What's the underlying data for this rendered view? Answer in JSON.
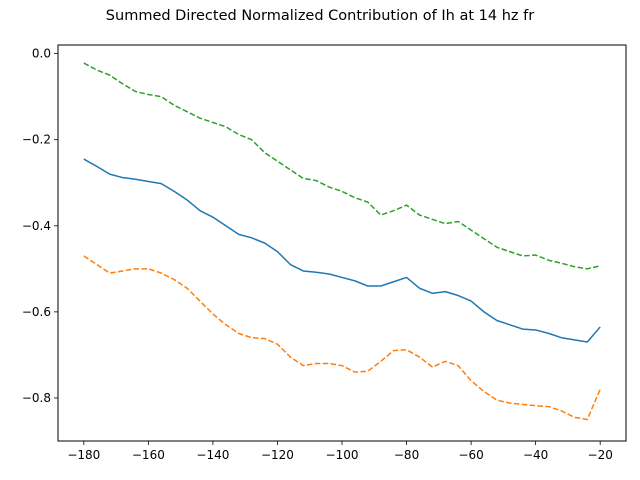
{
  "chart_data": {
    "type": "line",
    "title": "Summed Directed Normalized Contribution of Ih at 14 hz fr",
    "xlabel": "",
    "ylabel": "",
    "xlim": [
      -188,
      -12
    ],
    "ylim": [
      -0.9,
      0.02
    ],
    "xticks": [
      -180,
      -160,
      -140,
      -120,
      -100,
      -80,
      -60,
      -40,
      -20
    ],
    "yticks": [
      0.0,
      -0.2,
      -0.4,
      -0.6,
      -0.8
    ],
    "xtick_labels": [
      "−180",
      "−160",
      "−140",
      "−120",
      "−100",
      "−80",
      "−60",
      "−40",
      "−20"
    ],
    "ytick_labels": [
      "0.0",
      "−0.2",
      "−0.4",
      "−0.6",
      "−0.8"
    ],
    "grid": false,
    "x": [
      -180,
      -176,
      -172,
      -168,
      -164,
      -160,
      -156,
      -152,
      -148,
      -144,
      -140,
      -136,
      -132,
      -128,
      -124,
      -120,
      -116,
      -112,
      -108,
      -104,
      -100,
      -96,
      -92,
      -88,
      -84,
      -80,
      -76,
      -72,
      -68,
      -64,
      -60,
      -56,
      -52,
      -48,
      -44,
      -40,
      -36,
      -32,
      -28,
      -24,
      -20
    ],
    "series": [
      {
        "color": "#2ca02c",
        "style": "dashed",
        "values": [
          -0.022,
          -0.038,
          -0.05,
          -0.07,
          -0.088,
          -0.095,
          -0.1,
          -0.12,
          -0.135,
          -0.15,
          -0.16,
          -0.17,
          -0.188,
          -0.2,
          -0.23,
          -0.25,
          -0.27,
          -0.29,
          -0.295,
          -0.31,
          -0.32,
          -0.335,
          -0.345,
          -0.375,
          -0.365,
          -0.352,
          -0.375,
          -0.385,
          -0.395,
          -0.39,
          -0.41,
          -0.43,
          -0.45,
          -0.46,
          -0.47,
          -0.468,
          -0.48,
          -0.487,
          -0.495,
          -0.5,
          -0.493
        ]
      },
      {
        "color": "#1f77b4",
        "style": "solid",
        "values": [
          -0.245,
          -0.262,
          -0.28,
          -0.288,
          -0.292,
          -0.297,
          -0.302,
          -0.32,
          -0.34,
          -0.365,
          -0.38,
          -0.4,
          -0.42,
          -0.428,
          -0.44,
          -0.46,
          -0.49,
          -0.505,
          -0.508,
          -0.512,
          -0.52,
          -0.528,
          -0.54,
          -0.54,
          -0.53,
          -0.52,
          -0.545,
          -0.557,
          -0.553,
          -0.562,
          -0.575,
          -0.6,
          -0.62,
          -0.63,
          -0.64,
          -0.642,
          -0.65,
          -0.66,
          -0.665,
          -0.67,
          -0.635
        ]
      },
      {
        "color": "#ff7f0e",
        "style": "dashed",
        "values": [
          -0.47,
          -0.49,
          -0.51,
          -0.505,
          -0.5,
          -0.5,
          -0.51,
          -0.525,
          -0.545,
          -0.575,
          -0.605,
          -0.63,
          -0.65,
          -0.66,
          -0.662,
          -0.675,
          -0.705,
          -0.725,
          -0.72,
          -0.72,
          -0.725,
          -0.74,
          -0.738,
          -0.715,
          -0.69,
          -0.688,
          -0.705,
          -0.728,
          -0.715,
          -0.725,
          -0.76,
          -0.785,
          -0.805,
          -0.812,
          -0.815,
          -0.818,
          -0.82,
          -0.83,
          -0.845,
          -0.85,
          -0.78
        ]
      }
    ]
  }
}
